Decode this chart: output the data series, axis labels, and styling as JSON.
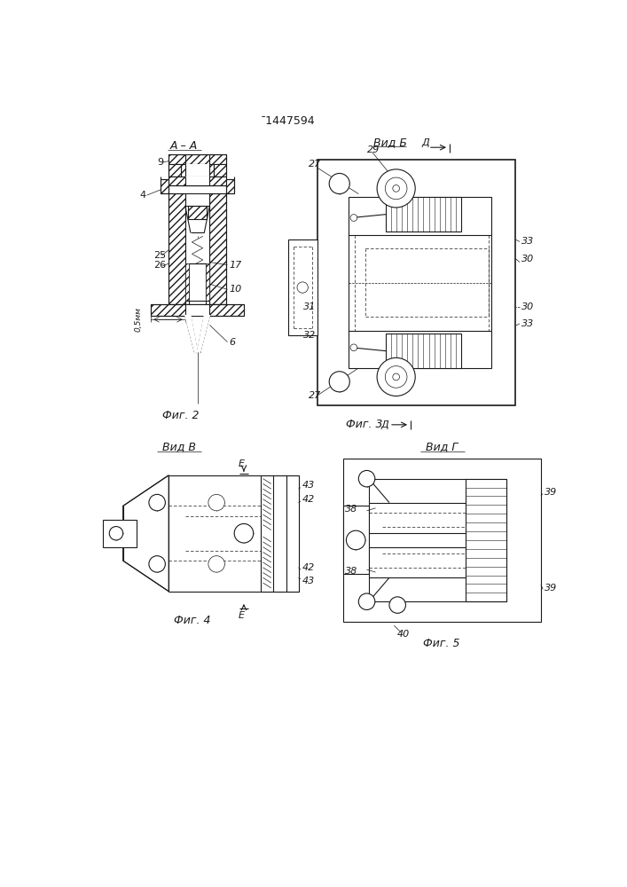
{
  "title": "¯1447594",
  "bg_color": "#ffffff",
  "line_color": "#1a1a1a",
  "fig2_caption": "Фиг. 2",
  "fig3_caption": "Фиг. 3",
  "fig4_caption": "Фиг. 4",
  "fig5_caption": "Фиг. 5",
  "vid_b": "Вид Б",
  "vid_v": "Вид В",
  "vid_g": "Вид Г",
  "aa_label": "А – А",
  "label_d": "Д"
}
